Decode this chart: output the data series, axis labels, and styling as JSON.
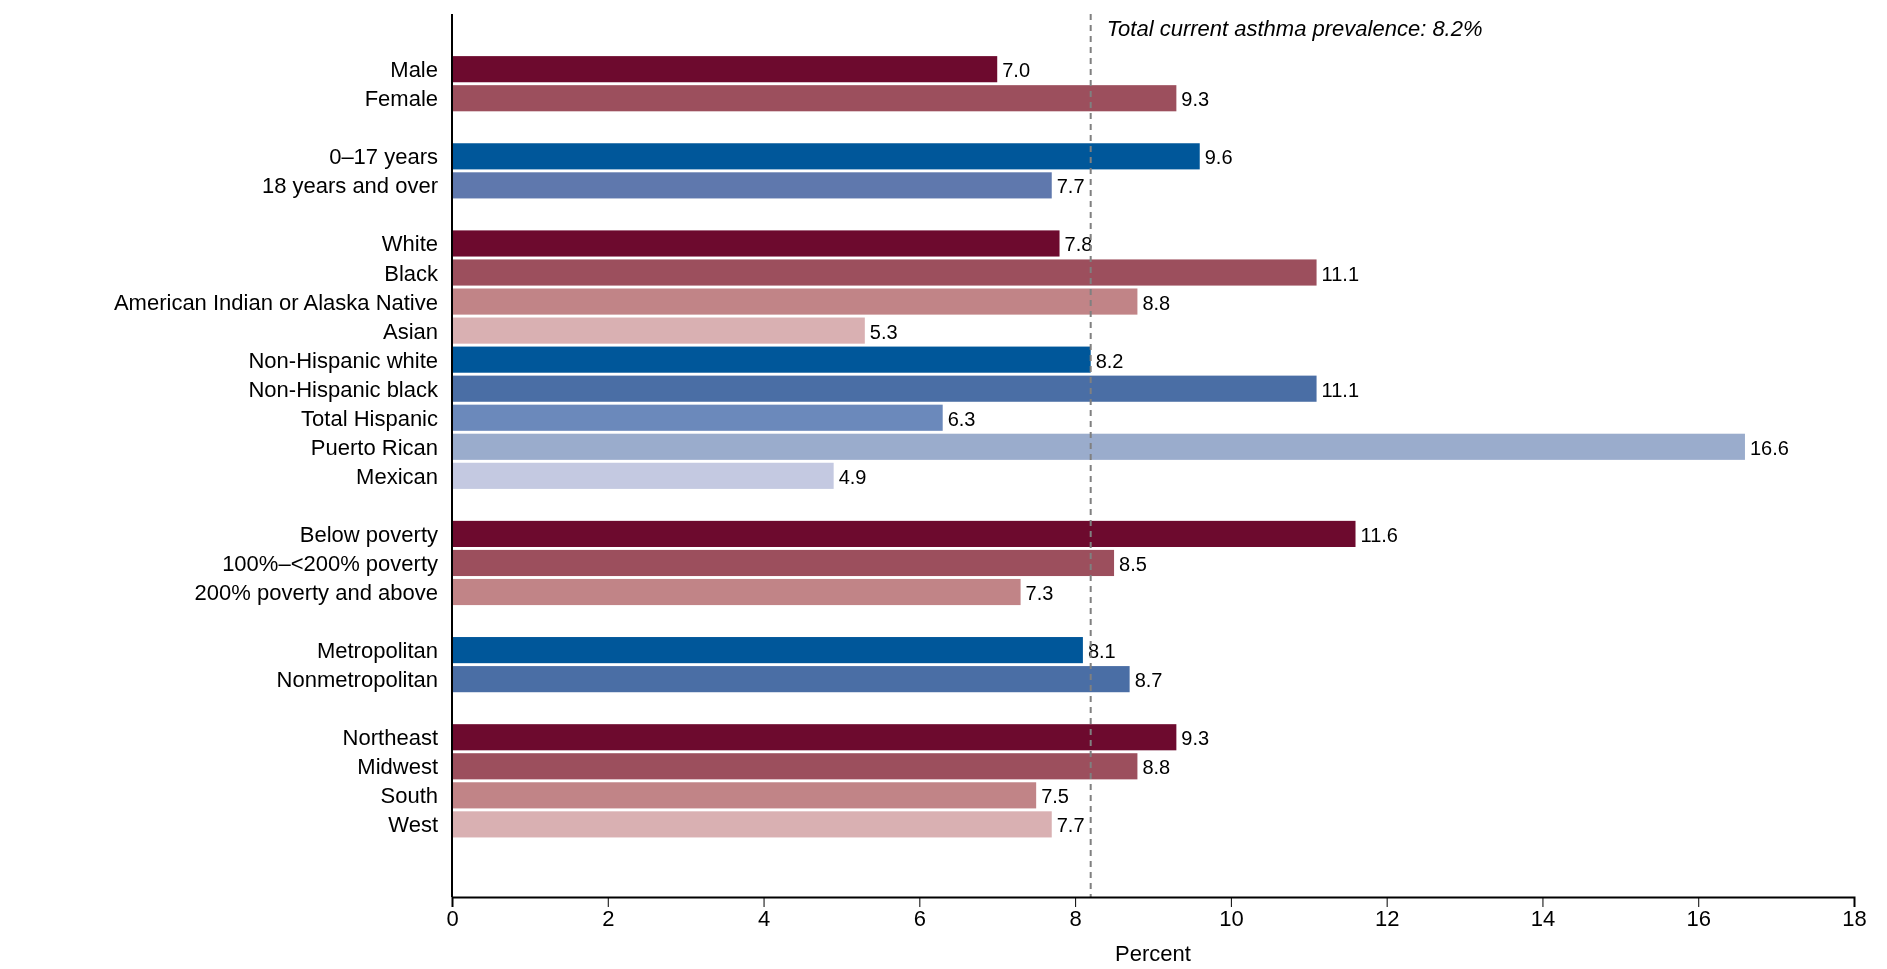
{
  "chart_data": {
    "type": "bar",
    "orientation": "horizontal",
    "xlabel": "Percent",
    "categories": [
      "Male",
      "Female",
      null,
      "0–17 years",
      "18 years and over",
      null,
      "White",
      "Black",
      "American Indian or Alaska Native",
      "Asian",
      "Non-Hispanic white",
      "Non-Hispanic black",
      "Total Hispanic",
      "Puerto Rican",
      "Mexican",
      null,
      "Below poverty",
      "100%–<200% poverty",
      "200% poverty and above",
      null,
      "Metropolitan",
      "Nonmetropolitan",
      null,
      "Northeast",
      "Midwest",
      "South",
      "West"
    ],
    "values": [
      7.0,
      9.3,
      null,
      9.6,
      7.7,
      null,
      7.8,
      11.1,
      8.8,
      5.3,
      8.2,
      11.1,
      6.3,
      16.6,
      4.9,
      null,
      11.6,
      8.5,
      7.3,
      null,
      8.1,
      8.7,
      null,
      9.3,
      8.8,
      7.5,
      7.7
    ],
    "value_labels": [
      "7.0",
      "9.3",
      null,
      "9.6",
      "7.7",
      null,
      "7.8",
      "11.1",
      "8.8",
      "5.3",
      "8.2",
      "11.1",
      "6.3",
      "16.6",
      "4.9",
      null,
      "11.6",
      "8.5",
      "7.3",
      null,
      "8.1",
      "8.7",
      null,
      "9.3",
      "8.8",
      "7.5",
      "7.7"
    ],
    "colors": [
      "#6d0a2e",
      "#9c4f5d",
      null,
      "#00579a",
      "#5f78ad",
      null,
      "#6d0a2e",
      "#9c4f5d",
      "#c18487",
      "#d9b0b2",
      "#00579a",
      "#4a6ea5",
      "#6b89bb",
      "#9aaccc",
      "#c4c9e1",
      null,
      "#6d0a2e",
      "#9c4f5d",
      "#c18487",
      null,
      "#00579a",
      "#4a6ea5",
      null,
      "#6d0a2e",
      "#9c4f5d",
      "#c18487",
      "#d9b0b2"
    ],
    "xlim": [
      0,
      18
    ],
    "xticks": [
      0,
      2,
      4,
      6,
      8,
      10,
      12,
      14,
      16,
      18
    ],
    "ref_lines": [
      {
        "axis": "x",
        "value": 8.2,
        "label": "Total current asthma prevalence: 8.2%",
        "color": "#808080",
        "line_style": "dashed"
      }
    ]
  }
}
